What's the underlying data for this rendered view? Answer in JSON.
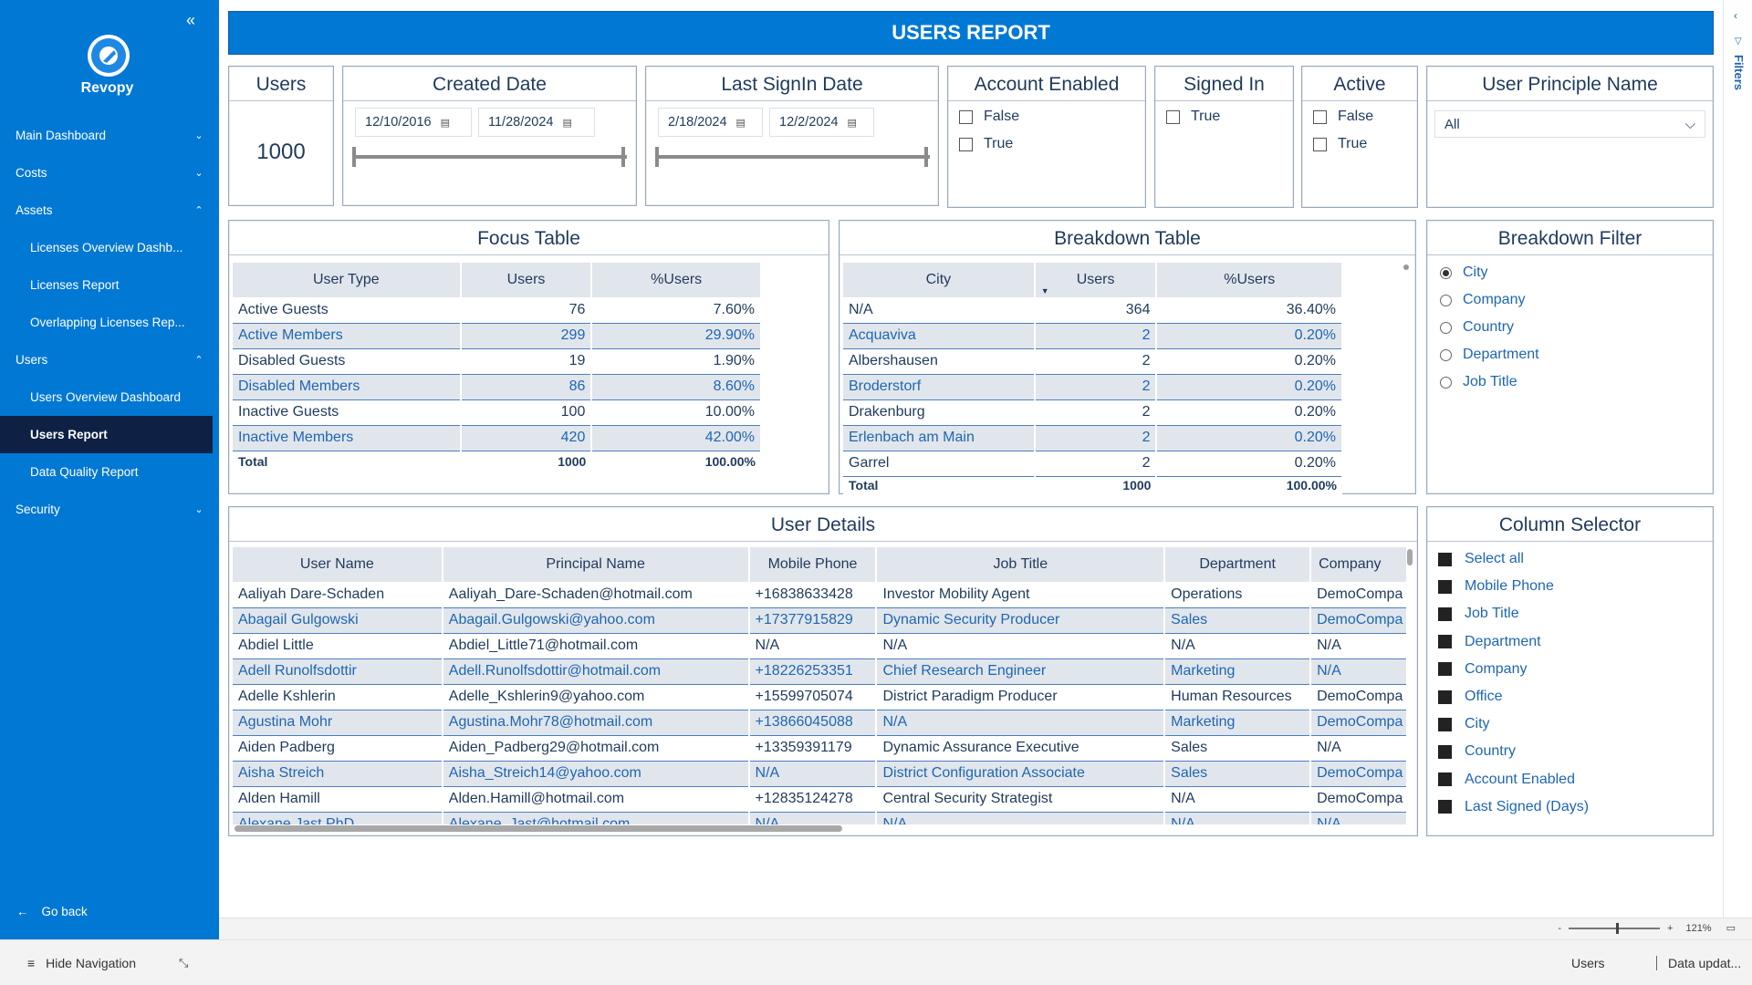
{
  "brand": "Revopy",
  "nav": {
    "items": [
      {
        "label": "Main Dashboard",
        "chev": "⌄",
        "sub": false,
        "active": false
      },
      {
        "label": "Costs",
        "chev": "⌄",
        "sub": false,
        "active": false
      },
      {
        "label": "Assets",
        "chev": "⌃",
        "sub": false,
        "active": false
      },
      {
        "label": "Licenses Overview Dashb...",
        "chev": "",
        "sub": true,
        "active": false
      },
      {
        "label": "Licenses Report",
        "chev": "",
        "sub": true,
        "active": false
      },
      {
        "label": "Overlapping Licenses Rep...",
        "chev": "",
        "sub": true,
        "active": false
      },
      {
        "label": "Users",
        "chev": "⌃",
        "sub": false,
        "active": false
      },
      {
        "label": "Users Overview Dashboard",
        "chev": "",
        "sub": true,
        "active": false
      },
      {
        "label": "Users Report",
        "chev": "",
        "sub": true,
        "active": true
      },
      {
        "label": "Data Quality Report",
        "chev": "",
        "sub": true,
        "active": false
      },
      {
        "label": "Security",
        "chev": "⌄",
        "sub": false,
        "active": false
      }
    ],
    "go_back": "Go back"
  },
  "header": {
    "title": "USERS REPORT"
  },
  "users_card": {
    "title": "Users",
    "value": "1000"
  },
  "created_date": {
    "title": "Created Date",
    "from": "12/10/2016",
    "to": "11/28/2024"
  },
  "last_signin": {
    "title": "Last SignIn Date",
    "from": "2/18/2024",
    "to": "12/2/2024"
  },
  "account_enabled": {
    "title": "Account Enabled",
    "options": [
      "False",
      "True"
    ]
  },
  "signed_in": {
    "title": "Signed In",
    "options": [
      "True"
    ]
  },
  "active": {
    "title": "Active",
    "options": [
      "False",
      "True"
    ]
  },
  "upn": {
    "title": "User Principle Name",
    "selected": "All"
  },
  "focus_table": {
    "title": "Focus Table",
    "columns": [
      "User Type",
      "Users",
      "%Users"
    ],
    "rows": [
      [
        "Active Guests",
        "76",
        "7.60%"
      ],
      [
        "Active Members",
        "299",
        "29.90%"
      ],
      [
        "Disabled Guests",
        "19",
        "1.90%"
      ],
      [
        "Disabled Members",
        "86",
        "8.60%"
      ],
      [
        "Inactive Guests",
        "100",
        "10.00%"
      ],
      [
        "Inactive Members",
        "420",
        "42.00%"
      ]
    ],
    "total": [
      "Total",
      "1000",
      "100.00%"
    ]
  },
  "breakdown_table": {
    "title": "Breakdown Table",
    "columns": [
      "City",
      "Users",
      "%Users"
    ],
    "rows": [
      [
        "N/A",
        "364",
        "36.40%"
      ],
      [
        "Acquaviva",
        "2",
        "0.20%"
      ],
      [
        "Albershausen",
        "2",
        "0.20%"
      ],
      [
        "Broderstorf",
        "2",
        "0.20%"
      ],
      [
        "Drakenburg",
        "2",
        "0.20%"
      ],
      [
        "Erlenbach am Main",
        "2",
        "0.20%"
      ],
      [
        "Garrel",
        "2",
        "0.20%"
      ]
    ],
    "total": [
      "Total",
      "1000",
      "100.00%"
    ]
  },
  "breakdown_filter": {
    "title": "Breakdown Filter",
    "options": [
      "City",
      "Company",
      "Country",
      "Department",
      "Job Title"
    ],
    "selected": "City"
  },
  "user_details": {
    "title": "User Details",
    "columns": [
      "User Name",
      "Principal Name",
      "Mobile Phone",
      "Job Title",
      "Department",
      "Company"
    ],
    "rows": [
      [
        "Aaliyah Dare-Schaden",
        "Aaliyah_Dare-Schaden@hotmail.com",
        "+16838633428",
        "Investor Mobility Agent",
        "Operations",
        "DemoCompa"
      ],
      [
        "Abagail Gulgowski",
        "Abagail.Gulgowski@yahoo.com",
        "+17377915829",
        "Dynamic Security Producer",
        "Sales",
        "DemoCompa"
      ],
      [
        "Abdiel Little",
        "Abdiel_Little71@hotmail.com",
        "N/A",
        "N/A",
        "N/A",
        "N/A"
      ],
      [
        "Adell Runolfsdottir",
        "Adell.Runolfsdottir@hotmail.com",
        "+18226253351",
        "Chief Research Engineer",
        "Marketing",
        "N/A"
      ],
      [
        "Adelle Kshlerin",
        "Adelle_Kshlerin9@yahoo.com",
        "+15599705074",
        "District Paradigm Producer",
        "Human Resources",
        "DemoCompa"
      ],
      [
        "Agustina Mohr",
        "Agustina.Mohr78@hotmail.com",
        "+13866045088",
        "N/A",
        "Marketing",
        "DemoCompa"
      ],
      [
        "Aiden Padberg",
        "Aiden_Padberg29@hotmail.com",
        "+13359391179",
        "Dynamic Assurance Executive",
        "Sales",
        "N/A"
      ],
      [
        "Aisha Streich",
        "Aisha_Streich14@yahoo.com",
        "N/A",
        "District Configuration Associate",
        "Sales",
        "DemoCompa"
      ],
      [
        "Alden Hamill",
        "Alden.Hamill@hotmail.com",
        "+12835124278",
        "Central Security Strategist",
        "N/A",
        "DemoCompa"
      ],
      [
        "Alexane Jast PhD",
        "Alexane_Jast@hotmail.com",
        "N/A",
        "N/A",
        "N/A",
        "N/A"
      ]
    ]
  },
  "column_selector": {
    "title": "Column Selector",
    "options": [
      "Select all",
      "Mobile Phone",
      "Job Title",
      "Department",
      "Company",
      "Office",
      "City",
      "Country",
      "Account Enabled",
      "Last Signed (Days)"
    ]
  },
  "filters_pane": {
    "label": "Filters"
  },
  "zoom": {
    "minus": "-",
    "plus": "+",
    "level": "121%"
  },
  "status": {
    "hide_nav": "Hide Navigation",
    "page": "Users",
    "data": "Data updat..."
  }
}
